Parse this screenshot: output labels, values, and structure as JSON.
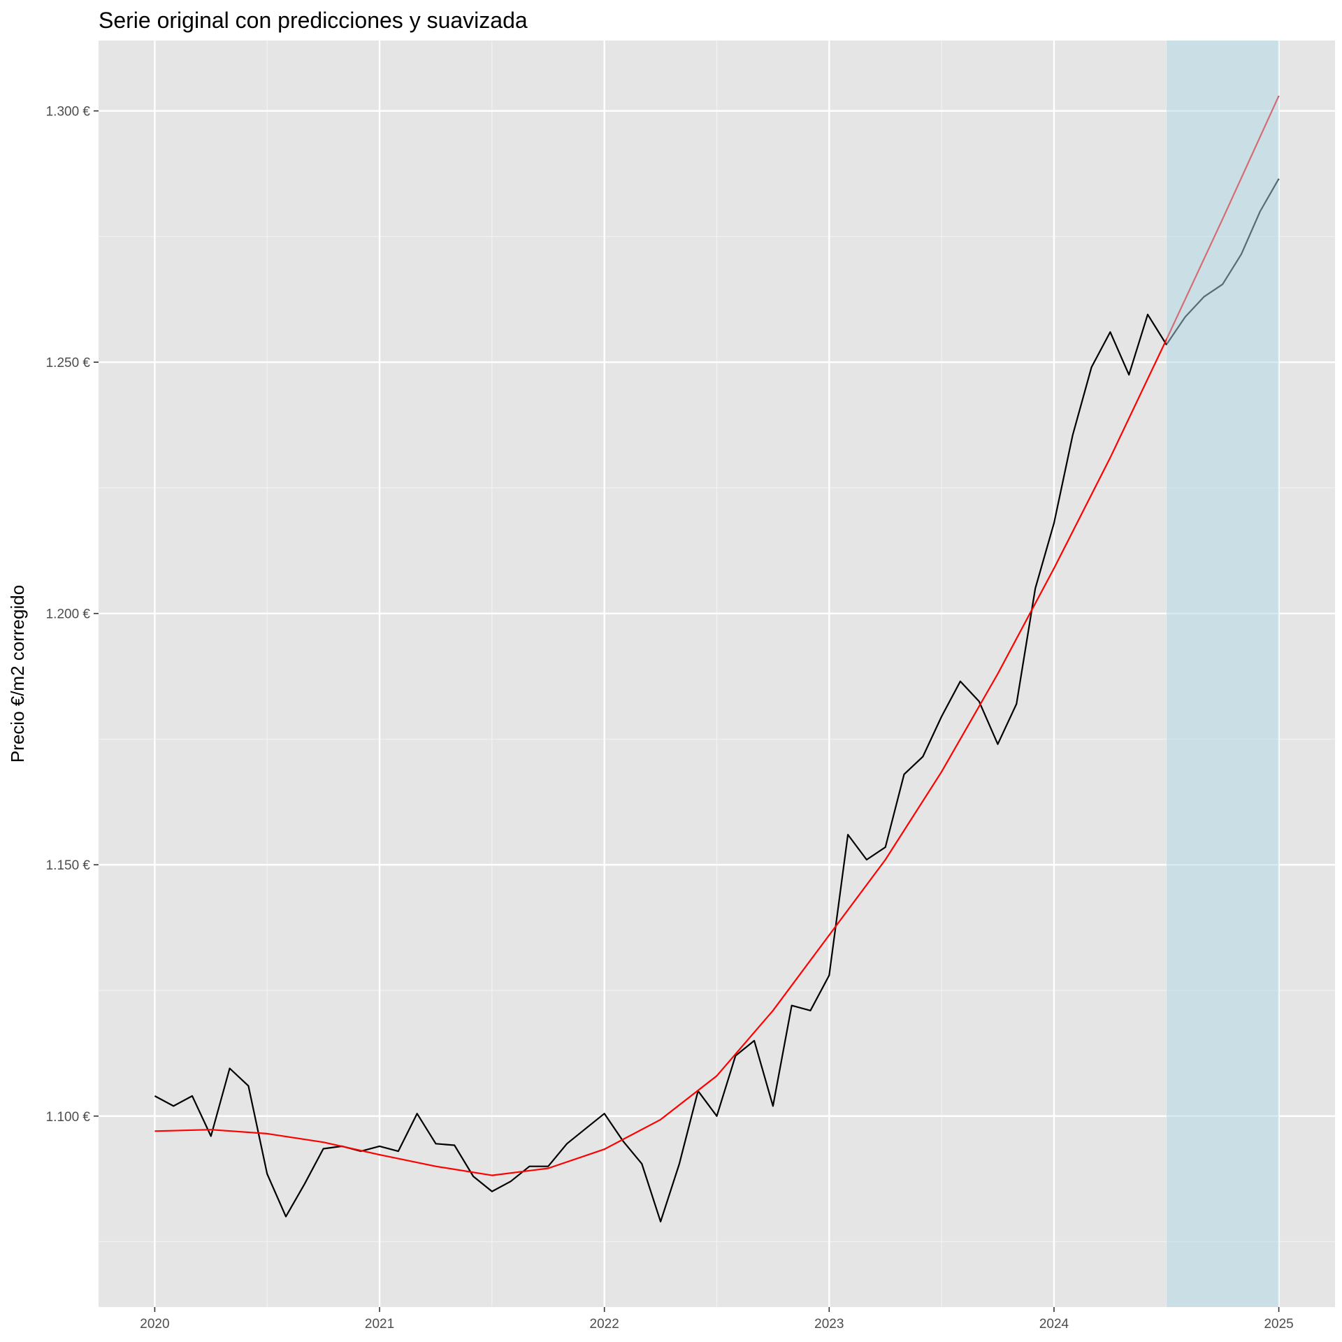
{
  "chart_data": {
    "type": "line",
    "title": "Serie original con predicciones y suavizada",
    "ylabel": "Precio €/m2 corregido",
    "xlabel": "",
    "x_ticks": [
      {
        "label": "2020",
        "value": 2020
      },
      {
        "label": "2021",
        "value": 2021
      },
      {
        "label": "2022",
        "value": 2022
      },
      {
        "label": "2023",
        "value": 2023
      },
      {
        "label": "2024",
        "value": 2024
      },
      {
        "label": "2025",
        "value": 2025
      }
    ],
    "y_ticks": [
      {
        "label": "1.100 €",
        "value": 1100
      },
      {
        "label": "1.150 €",
        "value": 1150
      },
      {
        "label": "1.200 €",
        "value": 1200
      },
      {
        "label": "1.250 €",
        "value": 1250
      },
      {
        "label": "1.300 €",
        "value": 1300
      }
    ],
    "y_minor_ticks": [
      1075,
      1125,
      1175,
      1225,
      1275
    ],
    "xlim": [
      2019.75,
      2025.25
    ],
    "ylim": [
      1062,
      1314
    ],
    "grid": true,
    "forecast_region": {
      "x_start": 2024.5,
      "x_end": 2025.0,
      "color": "#add8e6"
    },
    "series": [
      {
        "color": "#000000",
        "x": [
          2020.0,
          2020.0833,
          2020.1667,
          2020.25,
          2020.3333,
          2020.4167,
          2020.5,
          2020.5833,
          2020.6667,
          2020.75,
          2020.8333,
          2020.9167,
          2021.0,
          2021.0833,
          2021.1667,
          2021.25,
          2021.3333,
          2021.4167,
          2021.5,
          2021.5833,
          2021.6667,
          2021.75,
          2021.8333,
          2021.9167,
          2022.0,
          2022.0833,
          2022.1667,
          2022.25,
          2022.3333,
          2022.4167,
          2022.5,
          2022.5833,
          2022.6667,
          2022.75,
          2022.8333,
          2022.9167,
          2023.0,
          2023.0833,
          2023.1667,
          2023.25,
          2023.3333,
          2023.4167,
          2023.5,
          2023.5833,
          2023.6667,
          2023.75,
          2023.8333,
          2023.9167,
          2024.0,
          2024.0833,
          2024.1667,
          2024.25,
          2024.3333,
          2024.4167,
          2024.5,
          2024.5833,
          2024.6667,
          2024.75,
          2024.8333,
          2024.9167,
          2025.0
        ],
        "y": [
          1104,
          1102,
          1104,
          1096,
          1109.5,
          1106,
          1088.5,
          1080,
          1086.5,
          1093.5,
          1094,
          1093,
          1094,
          1093,
          1100.5,
          1094.5,
          1094.2,
          1088,
          1085,
          1087,
          1090,
          1090,
          1094.5,
          1097.5,
          1100.5,
          1095,
          1090.5,
          1079,
          1090.5,
          1105,
          1100,
          1112,
          1115,
          1102,
          1122,
          1121,
          1128,
          1156,
          1151,
          1153.5,
          1168,
          1171.5,
          1179.5,
          1186.5,
          1182.5,
          1174,
          1182,
          1205,
          1218,
          1235.5,
          1249,
          1256,
          1247.5,
          1259.5,
          1253.5,
          1259,
          1263,
          1265.5,
          1271.5,
          1280,
          1286.5
        ]
      },
      {
        "color": "#ff0000",
        "x": [
          2020.0,
          2020.25,
          2020.5,
          2020.75,
          2021.0,
          2021.25,
          2021.5,
          2021.75,
          2022.0,
          2022.25,
          2022.5,
          2022.75,
          2023.0,
          2023.25,
          2023.5,
          2023.75,
          2024.0,
          2024.25,
          2024.5,
          2024.75,
          2025.0
        ],
        "y": [
          1097,
          1097.3,
          1096.5,
          1094.8,
          1092.3,
          1090,
          1088.2,
          1089.6,
          1093.4,
          1099.3,
          1108,
          1121,
          1136,
          1151,
          1168.5,
          1188,
          1209,
          1231,
          1254.5,
          1278.5,
          1303
        ]
      }
    ]
  }
}
